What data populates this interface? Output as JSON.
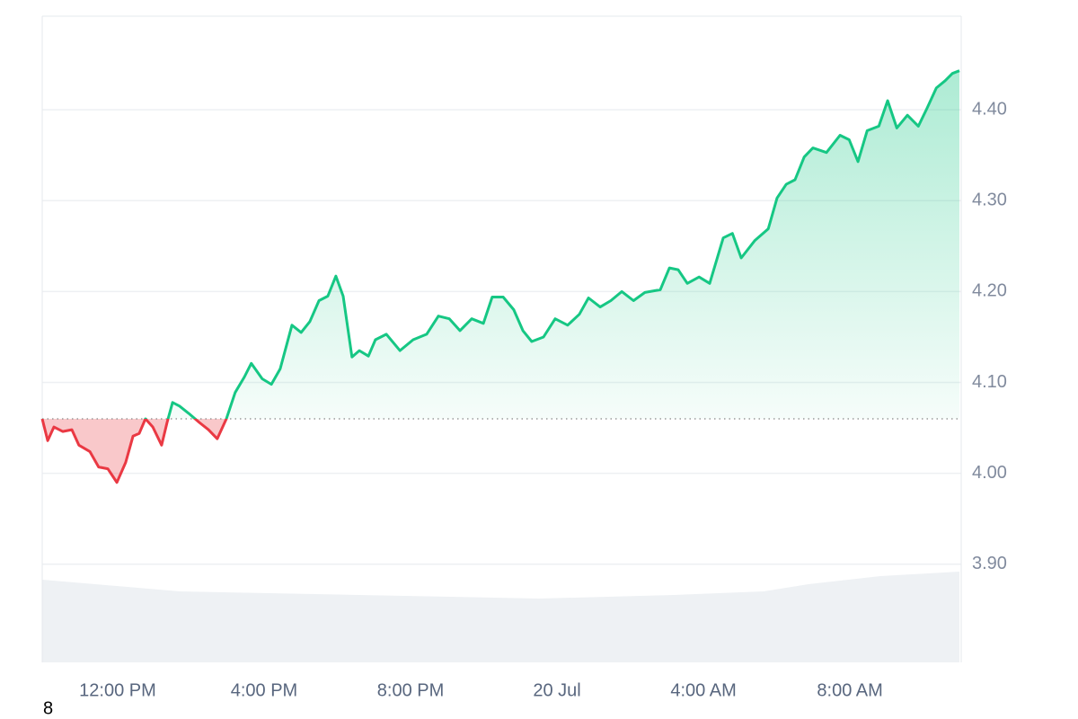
{
  "chart_data": {
    "type": "line",
    "corner_label": "8",
    "up_color": "#16c784",
    "down_color": "#ea3943",
    "baseline": 4.06,
    "grid": true,
    "xlim": [
      -2.06,
      23.04
    ],
    "ylim": [
      3.792,
      4.503
    ],
    "xticks": [
      {
        "value": 0,
        "label": "12:00 PM"
      },
      {
        "value": 4,
        "label": "4:00 PM"
      },
      {
        "value": 8,
        "label": "8:00 PM"
      },
      {
        "value": 12,
        "label": "20 Jul"
      },
      {
        "value": 16,
        "label": "4:00 AM"
      },
      {
        "value": 20,
        "label": "8:00 AM"
      }
    ],
    "yticks": [
      {
        "value": 3.9,
        "label": "3.90"
      },
      {
        "value": 4.0,
        "label": "4.00"
      },
      {
        "value": 4.1,
        "label": "4.10"
      },
      {
        "value": 4.2,
        "label": "4.20"
      },
      {
        "value": 4.3,
        "label": "4.30"
      },
      {
        "value": 4.4,
        "label": "4.40"
      }
    ],
    "x": [
      -2.06,
      -1.91,
      -1.74,
      -1.5,
      -1.25,
      -1.06,
      -0.76,
      -0.52,
      -0.27,
      -0.02,
      0.22,
      0.42,
      0.59,
      0.76,
      0.96,
      1.2,
      1.35,
      1.5,
      1.69,
      1.94,
      2.23,
      2.48,
      2.72,
      2.97,
      3.21,
      3.46,
      3.65,
      3.95,
      4.2,
      4.44,
      4.76,
      5.01,
      5.25,
      5.5,
      5.74,
      5.96,
      6.16,
      6.4,
      6.6,
      6.85,
      7.04,
      7.34,
      7.71,
      8.07,
      8.44,
      8.76,
      9.06,
      9.35,
      9.67,
      9.99,
      10.23,
      10.53,
      10.82,
      11.07,
      11.31,
      11.63,
      11.95,
      12.29,
      12.61,
      12.86,
      13.18,
      13.47,
      13.77,
      14.09,
      14.4,
      14.82,
      15.07,
      15.31,
      15.56,
      15.88,
      16.17,
      16.54,
      16.79,
      17.03,
      17.4,
      17.77,
      18.01,
      18.26,
      18.5,
      18.75,
      18.99,
      19.36,
      19.73,
      19.98,
      20.22,
      20.47,
      20.79,
      21.03,
      21.28,
      21.57,
      21.87,
      22.11,
      22.36,
      22.6,
      22.8,
      22.99
    ],
    "values": [
      4.06,
      4.036,
      4.051,
      4.046,
      4.048,
      4.031,
      4.024,
      4.007,
      4.005,
      3.99,
      4.012,
      4.041,
      4.044,
      4.06,
      4.051,
      4.031,
      4.056,
      4.078,
      4.074,
      4.066,
      4.056,
      4.048,
      4.038,
      4.06,
      4.089,
      4.106,
      4.121,
      4.104,
      4.098,
      4.115,
      4.163,
      4.155,
      4.167,
      4.19,
      4.195,
      4.217,
      4.195,
      4.128,
      4.135,
      4.129,
      4.147,
      4.153,
      4.135,
      4.147,
      4.153,
      4.173,
      4.17,
      4.157,
      4.17,
      4.165,
      4.194,
      4.194,
      4.18,
      4.157,
      4.145,
      4.15,
      4.17,
      4.163,
      4.175,
      4.193,
      4.183,
      4.19,
      4.2,
      4.19,
      4.199,
      4.202,
      4.226,
      4.224,
      4.209,
      4.216,
      4.209,
      4.259,
      4.264,
      4.237,
      4.256,
      4.269,
      4.303,
      4.318,
      4.323,
      4.348,
      4.358,
      4.353,
      4.372,
      4.367,
      4.343,
      4.377,
      4.382,
      4.41,
      4.38,
      4.394,
      4.382,
      4.402,
      4.424,
      4.432,
      4.44,
      4.443
    ]
  }
}
